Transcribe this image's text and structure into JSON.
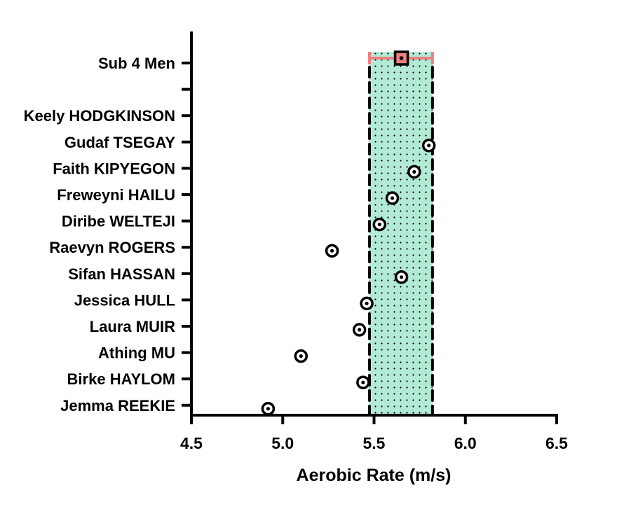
{
  "chart_data": {
    "type": "scatter",
    "title": "",
    "xlabel": "Aerobic Rate (m/s)",
    "ylabel": "",
    "xlim": [
      4.5,
      6.5
    ],
    "xticks": [
      "4.5",
      "5.0",
      "5.5",
      "6.0",
      "6.5"
    ],
    "grid": false,
    "categories": [
      "Sub 4 Men",
      "",
      "Keely HODGKINSON",
      "Gudaf TSEGAY",
      "Faith KIPYEGON",
      "Freweyni HAILU",
      "Diribe WELTEJI",
      "Raevyn ROGERS",
      "Sifan HASSAN",
      "Jessica HULL",
      "Laura MUIR",
      "Athing MU",
      "Birke HAYLOM",
      "Jemma REEKIE"
    ],
    "reference": {
      "label": "Sub 4 Men",
      "mean": 5.65,
      "range": [
        5.475,
        5.82
      ],
      "band_color": "#b3ead6",
      "errorbar_color": "#f08080",
      "marker_color": "#f08080"
    },
    "points": [
      {
        "name": "Keely HODGKINSON",
        "value": null
      },
      {
        "name": "Gudaf TSEGAY",
        "value": 5.8
      },
      {
        "name": "Faith KIPYEGON",
        "value": 5.72
      },
      {
        "name": "Freweyni HAILU",
        "value": 5.6
      },
      {
        "name": "Diribe WELTEJI",
        "value": 5.53
      },
      {
        "name": "Raevyn ROGERS",
        "value": 5.27
      },
      {
        "name": "Sifan HASSAN",
        "value": 5.65
      },
      {
        "name": "Jessica HULL",
        "value": 5.46
      },
      {
        "name": "Laura MUIR",
        "value": 5.42
      },
      {
        "name": "Athing MU",
        "value": 5.1
      },
      {
        "name": "Birke HAYLOM",
        "value": 5.44
      },
      {
        "name": "Jemma REEKIE",
        "value": 4.92
      }
    ]
  }
}
